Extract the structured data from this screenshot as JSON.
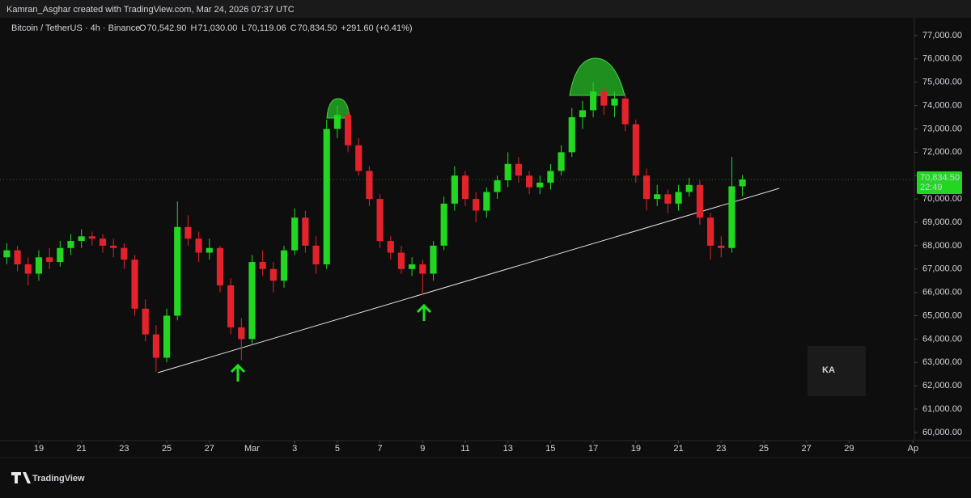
{
  "header": "Kamran_Asghar created with TradingView.com, Mar 24, 2026 07:37 UTC",
  "footer": "TradingView",
  "watermark": "KA",
  "chart_data": {
    "type": "candlestick",
    "symbol": "Bitcoin / TetherUS · 4h · Binance",
    "ohlc_legend": [
      {
        "name": "O",
        "label": "70,542.90"
      },
      {
        "name": "H",
        "label": "71,030.00"
      },
      {
        "name": "L",
        "label": "70,119.06"
      },
      {
        "name": "C",
        "label": "70,834.50"
      }
    ],
    "change_label": "+291.60 (+0.41%)",
    "countdown": "22:49",
    "up_color": "#22d622",
    "down_color": "#e3232c",
    "grid": false,
    "x": [
      17.5,
      18,
      18.5,
      19,
      19.5,
      20,
      20.5,
      21,
      21.5,
      22,
      22.5,
      23,
      23.5,
      24,
      24.5,
      25,
      25.5,
      26,
      26.5,
      27,
      27.5,
      28,
      28.5,
      29,
      29.5,
      30,
      30.5,
      31,
      31.5,
      32,
      32.5,
      33,
      33.5,
      34,
      34.5,
      35,
      35.5,
      36,
      36.5,
      37,
      37.5,
      38,
      38.5,
      39,
      39.5,
      40,
      40.5,
      41,
      41.5,
      42,
      42.5,
      43,
      43.5,
      44,
      44.5,
      45,
      45.5,
      46,
      46.5,
      47,
      47.5,
      48,
      48.5,
      49,
      49.5,
      50,
      50.5,
      51,
      51.5,
      52
    ],
    "open": [
      67500,
      67800,
      67200,
      66800,
      67500,
      67300,
      67900,
      68200,
      68400,
      68300,
      68000,
      67900,
      67400,
      65300,
      64200,
      63200,
      65000,
      68800,
      68300,
      67700,
      67900,
      66300,
      64500,
      64000,
      67300,
      67000,
      66500,
      67800,
      69200,
      68000,
      67200,
      73000,
      73600,
      72300,
      71200,
      70000,
      68200,
      67700,
      67000,
      67200,
      66800,
      68000,
      69800,
      71000,
      70000,
      69500,
      70300,
      70800,
      71500,
      71000,
      70500,
      70700,
      71200,
      72000,
      73500,
      73800,
      74600,
      74000,
      74300,
      73200,
      71000,
      70000,
      70200,
      69800,
      70300,
      70600,
      69200,
      68000,
      67900,
      70542.9
    ],
    "high": [
      68100,
      68000,
      67500,
      67800,
      67900,
      68200,
      68500,
      68700,
      68600,
      68500,
      68300,
      68100,
      67600,
      65700,
      64600,
      65300,
      69900,
      69300,
      68600,
      68300,
      68000,
      66600,
      64900,
      67600,
      67800,
      67300,
      68000,
      69600,
      69500,
      68400,
      73400,
      74000,
      73800,
      72600,
      71400,
      70200,
      68400,
      68000,
      67500,
      67400,
      68200,
      70100,
      71400,
      71200,
      70300,
      70500,
      71000,
      72000,
      71800,
      71200,
      71000,
      71500,
      72300,
      73900,
      74200,
      75000,
      74800,
      74600,
      74500,
      73400,
      71300,
      70600,
      70400,
      70600,
      70900,
      70800,
      69400,
      68400,
      71800,
      71030
    ],
    "low": [
      67200,
      66900,
      66300,
      66500,
      67000,
      67100,
      67600,
      67900,
      68000,
      67700,
      67500,
      67000,
      65000,
      63900,
      62600,
      63000,
      64800,
      68000,
      67300,
      67400,
      66000,
      64200,
      63100,
      63800,
      66700,
      66000,
      66200,
      67600,
      67700,
      66800,
      67000,
      72600,
      72000,
      71000,
      69700,
      67900,
      67400,
      66800,
      66700,
      65900,
      66500,
      67800,
      69500,
      69700,
      69000,
      69200,
      70000,
      70500,
      70700,
      70200,
      70200,
      70400,
      71000,
      71800,
      73000,
      73500,
      73600,
      73500,
      72900,
      70700,
      69500,
      69700,
      69400,
      69500,
      70100,
      68900,
      67400,
      67500,
      67700,
      70119.06
    ],
    "close": [
      67800,
      67200,
      66800,
      67500,
      67300,
      67900,
      68200,
      68400,
      68300,
      68000,
      67900,
      67400,
      65300,
      64200,
      63200,
      65000,
      68800,
      68300,
      67700,
      67900,
      66300,
      64500,
      64000,
      67300,
      67000,
      66500,
      67800,
      69200,
      68000,
      67200,
      73000,
      73600,
      72300,
      71200,
      70000,
      68200,
      67700,
      67000,
      67200,
      66800,
      68000,
      69800,
      71000,
      70000,
      69500,
      70300,
      70800,
      71500,
      71000,
      70500,
      70700,
      71200,
      72000,
      73500,
      73800,
      74600,
      74000,
      74300,
      73200,
      71000,
      70000,
      70200,
      69800,
      70300,
      70600,
      69200,
      68000,
      67900,
      70542.9,
      70834.5
    ],
    "xlim": [
      17.18,
      60.06
    ],
    "xticks": [
      19,
      21,
      23,
      25,
      27,
      {
        "value": 29,
        "label": "Mar"
      },
      {
        "value": 31,
        "label": "3"
      },
      {
        "value": 33,
        "label": "5"
      },
      {
        "value": 35,
        "label": "7"
      },
      {
        "value": 37,
        "label": "9"
      },
      {
        "value": 39,
        "label": "11"
      },
      {
        "value": 41,
        "label": "13"
      },
      {
        "value": 43,
        "label": "15"
      },
      {
        "value": 45,
        "label": "17"
      },
      {
        "value": 47,
        "label": "19"
      },
      {
        "value": 49,
        "label": "21"
      },
      {
        "value": 51,
        "label": "23"
      },
      {
        "value": 53,
        "label": "25"
      },
      {
        "value": 55,
        "label": "27"
      },
      {
        "value": 57,
        "label": "29"
      },
      {
        "value": 60,
        "label": "Ap"
      }
    ],
    "ylim": [
      59650,
      77760
    ],
    "yticks": [
      {
        "value": 60000,
        "label": "60,000.00"
      },
      {
        "value": 61000,
        "label": "61,000.00"
      },
      {
        "value": 62000,
        "label": "62,000.00"
      },
      {
        "value": 63000,
        "label": "63,000.00"
      },
      {
        "value": 64000,
        "label": "64,000.00"
      },
      {
        "value": 65000,
        "label": "65,000.00"
      },
      {
        "value": 66000,
        "label": "66,000.00"
      },
      {
        "value": 67000,
        "label": "67,000.00"
      },
      {
        "value": 68000,
        "label": "68,000.00"
      },
      {
        "value": 69000,
        "label": "69,000.00"
      },
      {
        "value": 70000,
        "label": "70,000.00"
      },
      {
        "value": 71000,
        "label": "71,000.00"
      },
      {
        "value": 72000,
        "label": "72,000.00"
      },
      {
        "value": 73000,
        "label": "73,000.00"
      },
      {
        "value": 74000,
        "label": "74,000.00"
      },
      {
        "value": 75000,
        "label": "75,000.00"
      },
      {
        "value": 76000,
        "label": "76,000.00"
      },
      {
        "value": 77000,
        "label": "77,000.00"
      }
    ]
  }
}
